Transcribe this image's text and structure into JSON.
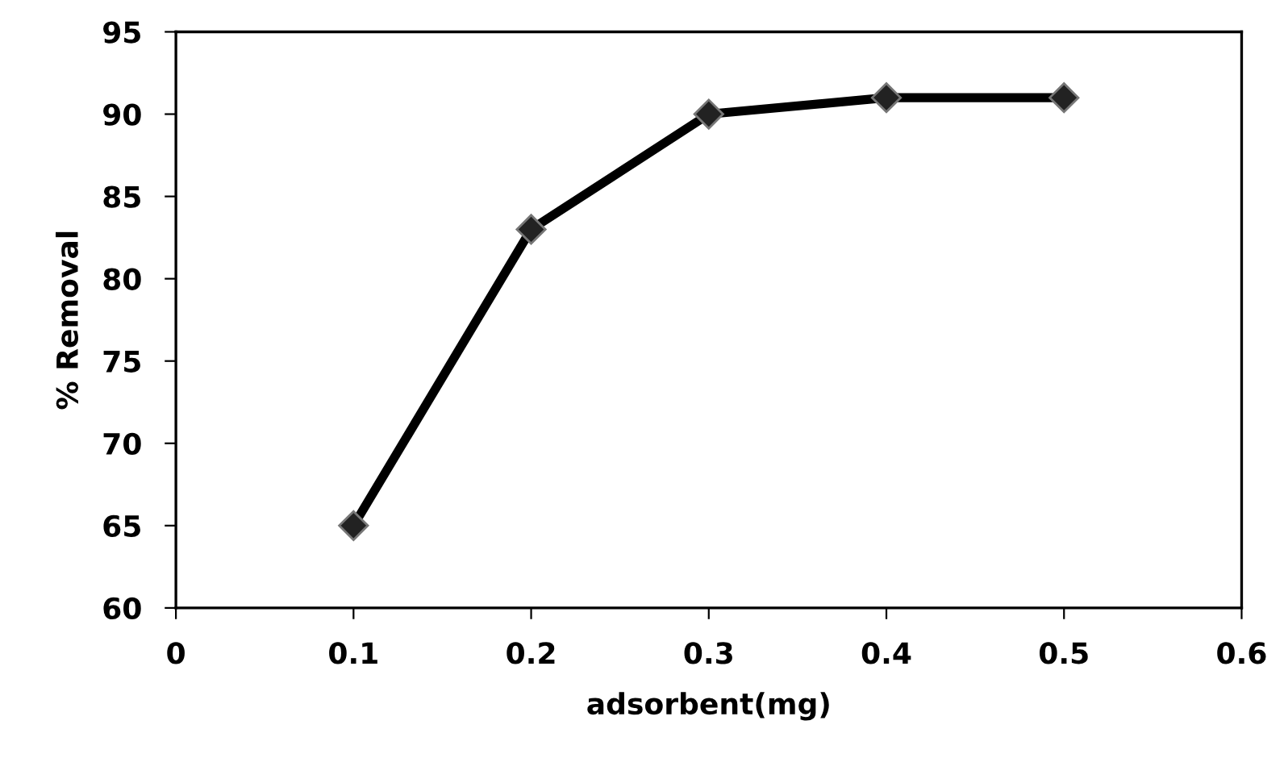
{
  "chart_data": {
    "type": "line",
    "xlabel": "adsorbent(mg)",
    "ylabel": "% Removal",
    "x": [
      0.1,
      0.2,
      0.3,
      0.4,
      0.5
    ],
    "series": [
      {
        "color": "#000000",
        "values": [
          65,
          83,
          90,
          91,
          91
        ]
      }
    ],
    "xlim": [
      0,
      0.6
    ],
    "xticks": [
      0,
      0.1,
      0.2,
      0.3,
      0.4,
      0.5,
      0.6
    ],
    "ylim": [
      60,
      95
    ],
    "yticks": [
      60,
      65,
      70,
      75,
      80,
      85,
      90,
      95
    ],
    "grid": false,
    "legend": false,
    "marker": "diamond",
    "line_style": "solid"
  }
}
